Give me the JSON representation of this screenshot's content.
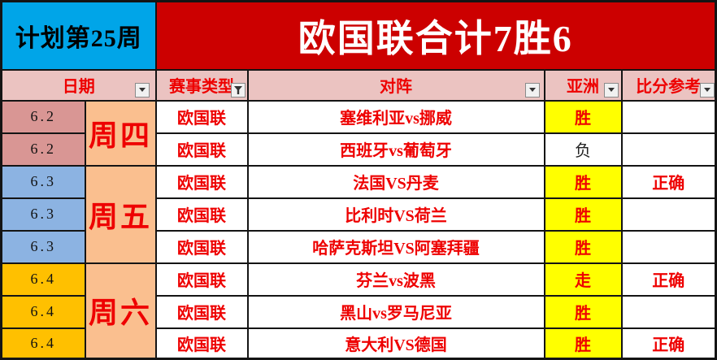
{
  "plan": {
    "label": "计划第25周",
    "bg": "#00A5E8",
    "text_color": "#000000"
  },
  "banner": {
    "title": "欧国联合计7胜6",
    "bg": "#CC0000",
    "text_color": "#FFFFFF"
  },
  "colors": {
    "red_text": "#EE0000",
    "header_bg": "#EBC3C1",
    "grid_border": "#141414",
    "yellow_highlight": "#FFFF00",
    "thu_date_bg": "#D99694",
    "fri_date_bg": "#8CB3E2",
    "sat_date_bg": "#FFC000",
    "weekday_bg": "#FABF8F",
    "edge_gray": "#8C8C8C"
  },
  "header": {
    "bg": "#EBC3C1",
    "text_color": "#EE0000",
    "columns": [
      {
        "id": "date",
        "label": "日期",
        "filter_icon": "dropdown-arrow"
      },
      {
        "id": "type",
        "label": "赛事类型",
        "filter_icon": "funnel"
      },
      {
        "id": "match",
        "label": "对阵",
        "filter_icon": "dropdown-arrow"
      },
      {
        "id": "asia",
        "label": "亚洲",
        "filter_icon": "dropdown-arrow"
      },
      {
        "id": "score",
        "label": "比分参考",
        "filter_icon": "dropdown-arrow"
      }
    ]
  },
  "day_groups": [
    {
      "label": "周四",
      "rowspan": 2,
      "bg": "#FABF8F",
      "text_color": "#EE0000"
    },
    {
      "label": "周五",
      "rowspan": 3,
      "bg": "#FABF8F",
      "text_color": "#EE0000"
    },
    {
      "label": "周六",
      "rowspan": 3,
      "bg": "#FABF8F",
      "text_color": "#EE0000"
    }
  ],
  "rows": [
    {
      "date": "6.2",
      "date_bg": "#D99694",
      "type": "欧国联",
      "match": "塞维利亚vs挪威",
      "asia": "胜",
      "asia_bg": "#FFFF00",
      "asia_color": "#EE0000",
      "asia_bold": true,
      "score": ""
    },
    {
      "date": "6.2",
      "date_bg": "#D99694",
      "type": "欧国联",
      "match": "西班牙vs葡萄牙",
      "asia": "负",
      "asia_bg": "#FFFFFF",
      "asia_color": "#222222",
      "asia_bold": false,
      "score": ""
    },
    {
      "date": "6.3",
      "date_bg": "#8CB3E2",
      "type": "欧国联",
      "match": "法国VS丹麦",
      "asia": "胜",
      "asia_bg": "#FFFF00",
      "asia_color": "#EE0000",
      "asia_bold": true,
      "score": "正确"
    },
    {
      "date": "6.3",
      "date_bg": "#8CB3E2",
      "type": "欧国联",
      "match": "比利时VS荷兰",
      "asia": "胜",
      "asia_bg": "#FFFF00",
      "asia_color": "#EE0000",
      "asia_bold": true,
      "score": ""
    },
    {
      "date": "6.3",
      "date_bg": "#8CB3E2",
      "type": "欧国联",
      "match": "哈萨克斯坦VS阿塞拜疆",
      "asia": "胜",
      "asia_bg": "#FFFF00",
      "asia_color": "#EE0000",
      "asia_bold": true,
      "score": ""
    },
    {
      "date": "6.4",
      "date_bg": "#FFC000",
      "type": "欧国联",
      "match": "芬兰vs波黑",
      "asia": "走",
      "asia_bg": "#FFFF00",
      "asia_color": "#EE0000",
      "asia_bold": true,
      "score": "正确"
    },
    {
      "date": "6.4",
      "date_bg": "#FFC000",
      "type": "欧国联",
      "match": "黑山vs罗马尼亚",
      "asia": "胜",
      "asia_bg": "#FFFF00",
      "asia_color": "#EE0000",
      "asia_bold": true,
      "score": ""
    },
    {
      "date": "6.4",
      "date_bg": "#FFC000",
      "type": "欧国联",
      "match": "意大利VS德国",
      "asia": "胜",
      "asia_bg": "#FFFF00",
      "asia_color": "#EE0000",
      "asia_bold": true,
      "score": "正确"
    }
  ]
}
